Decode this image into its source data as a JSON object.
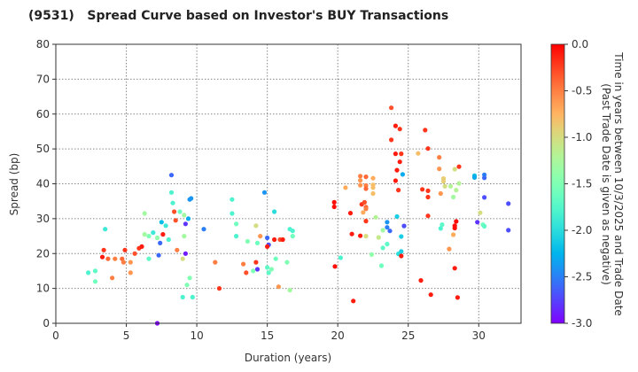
{
  "chart_data": {
    "type": "scatter",
    "title": "(9531)   Spread Curve based on Investor's BUY Transactions",
    "xlabel": "Duration (years)",
    "ylabel": "Spread (bp)",
    "xlim": [
      0,
      33
    ],
    "ylim": [
      0,
      80
    ],
    "xticks": [
      0,
      5,
      10,
      15,
      20,
      25,
      30
    ],
    "yticks": [
      0,
      10,
      20,
      30,
      40,
      50,
      60,
      70,
      80
    ],
    "grid": true,
    "colorbar": {
      "label_line1": "Time in years between 10/3/2025 and Trade Date",
      "label_line2": "(Past Trade Date is given as negative)",
      "range": [
        -3.0,
        0.0
      ],
      "ticks": [
        "0.0",
        "-0.5",
        "-1.0",
        "-1.5",
        "-2.0",
        "-2.5",
        "-3.0"
      ],
      "colormap": "rainbow"
    },
    "point_fields": [
      "duration",
      "spread",
      "time"
    ],
    "points": [
      [
        2.3,
        14.5,
        -1.8
      ],
      [
        2.8,
        15,
        -1.7
      ],
      [
        2.8,
        12,
        -1.6
      ],
      [
        3.3,
        19,
        -0.1
      ],
      [
        3.4,
        21,
        -0.2
      ],
      [
        3.5,
        27,
        -1.9
      ],
      [
        3.7,
        18.5,
        -0.4
      ],
      [
        4.0,
        13,
        -0.5
      ],
      [
        4.2,
        18.5,
        -0.5
      ],
      [
        4.7,
        18.5,
        -0.4
      ],
      [
        4.8,
        17.5,
        -0.5
      ],
      [
        4.9,
        21,
        -0.2
      ],
      [
        5.3,
        17.5,
        -0.6
      ],
      [
        5.3,
        14.5,
        -0.6
      ],
      [
        5.6,
        20,
        -0.3
      ],
      [
        5.9,
        21.5,
        -0.2
      ],
      [
        6.1,
        22,
        -0.1
      ],
      [
        6.3,
        31.5,
        -1.3
      ],
      [
        6.3,
        25.5,
        -1.3
      ],
      [
        6.6,
        18.5,
        -1.7
      ],
      [
        6.6,
        25,
        -1.5
      ],
      [
        6.9,
        26,
        -1.9
      ],
      [
        7.2,
        24.5,
        -1.4
      ],
      [
        7.3,
        19.5,
        -2.6
      ],
      [
        7.4,
        23,
        -2.6
      ],
      [
        7.5,
        29,
        -2.2
      ],
      [
        7.6,
        25.5,
        -0.1
      ],
      [
        7.8,
        28,
        -1.9
      ],
      [
        8.0,
        24,
        -1.8
      ],
      [
        8.2,
        37.5,
        -1.8
      ],
      [
        8.2,
        42.5,
        -2.6
      ],
      [
        8.3,
        34.5,
        -1.8
      ],
      [
        8.4,
        32,
        -0.3
      ],
      [
        8.5,
        29.5,
        -0.3
      ],
      [
        8.6,
        21,
        -0.5
      ],
      [
        8.8,
        32,
        -1.6
      ],
      [
        9.0,
        18.5,
        -1.0
      ],
      [
        9.1,
        31,
        -1.3
      ],
      [
        9.1,
        25,
        -1.3
      ],
      [
        9.2,
        28.5,
        -2.8
      ],
      [
        9.2,
        20,
        -2.9
      ],
      [
        9.4,
        30,
        -2.3
      ],
      [
        9.0,
        7.5,
        -1.8
      ],
      [
        9.5,
        35.5,
        -2.4
      ],
      [
        9.6,
        35.8,
        -2.4
      ],
      [
        9.7,
        7.5,
        -1.8
      ],
      [
        9.5,
        13,
        -1.5
      ],
      [
        9.3,
        11,
        -1.5
      ],
      [
        7.2,
        0,
        -3.0
      ],
      [
        10.5,
        27,
        -2.5
      ],
      [
        11.3,
        17.5,
        -0.5
      ],
      [
        11.6,
        10,
        -0.2
      ],
      [
        12.5,
        35.5,
        -1.8
      ],
      [
        12.5,
        31.5,
        -1.8
      ],
      [
        12.8,
        25,
        -1.8
      ],
      [
        12.8,
        28.5,
        -1.6
      ],
      [
        13.3,
        17,
        -0.5
      ],
      [
        13.5,
        14.5,
        -0.3
      ],
      [
        13.6,
        23.5,
        -1.5
      ],
      [
        14.0,
        15,
        -1.5
      ],
      [
        14.2,
        17.5,
        -0.2
      ],
      [
        14.2,
        28,
        -1.0
      ],
      [
        14.3,
        23,
        -1.6
      ],
      [
        14.3,
        15.5,
        -2.8
      ],
      [
        14.5,
        25,
        -0.6
      ],
      [
        14.8,
        37.5,
        -2.4
      ],
      [
        15.0,
        24.5,
        -2.6
      ],
      [
        15.1,
        22.5,
        -2.7
      ],
      [
        15.0,
        22,
        -0.1
      ],
      [
        15.0,
        16,
        -1.7
      ],
      [
        15.1,
        14.5,
        -1.7
      ],
      [
        15.3,
        15.5,
        -1.5
      ],
      [
        15.5,
        32,
        -2.0
      ],
      [
        15.5,
        24,
        -0.1
      ],
      [
        15.6,
        18.5,
        -1.6
      ],
      [
        15.8,
        10.5,
        -0.6
      ],
      [
        15.9,
        24,
        -0.3
      ],
      [
        16.1,
        24,
        -0.1
      ],
      [
        16.4,
        17.5,
        -1.5
      ],
      [
        16.6,
        9.5,
        -1.3
      ],
      [
        16.6,
        27,
        -1.8
      ],
      [
        16.8,
        26.5,
        -1.8
      ],
      [
        16.8,
        25,
        -1.6
      ],
      [
        19.75,
        34.7,
        -0.05
      ],
      [
        19.75,
        33.4,
        -0.05
      ],
      [
        19.8,
        16.3,
        -0.05
      ],
      [
        20.2,
        18.8,
        -1.8
      ],
      [
        20.55,
        38.9,
        -0.7
      ],
      [
        20.9,
        31.6,
        -0.1
      ],
      [
        21.0,
        25.6,
        -0.1
      ],
      [
        21.1,
        6.4,
        -0.1
      ],
      [
        21.6,
        25.1,
        -0.1
      ],
      [
        21.7,
        34.1,
        -0.2
      ],
      [
        21.9,
        34.7,
        -0.3
      ],
      [
        21.6,
        42.2,
        -0.5
      ],
      [
        21.6,
        41,
        -0.6
      ],
      [
        21.6,
        39.6,
        -0.6
      ],
      [
        22.0,
        42,
        -0.4
      ],
      [
        22.0,
        39.5,
        -0.5
      ],
      [
        22.0,
        38.6,
        -0.4
      ],
      [
        22.0,
        33.3,
        -0.4
      ],
      [
        22.0,
        32.8,
        -0.5
      ],
      [
        21.8,
        31.8,
        -0.7
      ],
      [
        22.0,
        29.3,
        -0.2
      ],
      [
        22.0,
        25,
        -1.0
      ],
      [
        22.5,
        41.6,
        -0.7
      ],
      [
        22.5,
        39.7,
        -0.8
      ],
      [
        22.5,
        38.9,
        -0.8
      ],
      [
        22.5,
        37.2,
        -0.8
      ],
      [
        22.7,
        30.4,
        -1.2
      ],
      [
        22.9,
        24.6,
        -1.1
      ],
      [
        22.4,
        19.7,
        -1.4
      ],
      [
        23.1,
        16.5,
        -1.6
      ],
      [
        23.2,
        21.6,
        -1.7
      ],
      [
        23.2,
        26.7,
        -1.3
      ],
      [
        23.5,
        29,
        -2.4
      ],
      [
        23.5,
        27.5,
        -2.5
      ],
      [
        23.7,
        26.5,
        -2.6
      ],
      [
        23.5,
        22.7,
        -1.7
      ],
      [
        23.8,
        61.8,
        -0.3
      ],
      [
        24.1,
        56.6,
        -0.1
      ],
      [
        24.4,
        55.7,
        -0.2
      ],
      [
        23.8,
        52.6,
        -0.2
      ],
      [
        24.1,
        48.6,
        -0.1
      ],
      [
        24.5,
        48.6,
        -0.2
      ],
      [
        24.4,
        46.3,
        -0.1
      ],
      [
        24.2,
        43.9,
        -0.1
      ],
      [
        24.6,
        42.7,
        -2.3
      ],
      [
        24.1,
        40.9,
        -0.1
      ],
      [
        24.3,
        38.2,
        -0.2
      ],
      [
        24.2,
        30.6,
        -2.1
      ],
      [
        24.7,
        27.9,
        -2.7
      ],
      [
        24.5,
        24.9,
        -2.1
      ],
      [
        24.5,
        20.6,
        -2.1
      ],
      [
        24.3,
        19.9,
        -2.0
      ],
      [
        24.5,
        19.3,
        -0.1
      ],
      [
        25.7,
        48.7,
        -0.8
      ],
      [
        26.2,
        55.4,
        -0.2
      ],
      [
        26.4,
        50.1,
        -0.2
      ],
      [
        26.0,
        38.4,
        -0.2
      ],
      [
        26.4,
        38,
        -0.2
      ],
      [
        26.4,
        36.2,
        -0.2
      ],
      [
        26.4,
        30.8,
        -0.2
      ],
      [
        25.9,
        12.3,
        -0.1
      ],
      [
        26.6,
        8.2,
        -0.1
      ],
      [
        27.2,
        47.6,
        -0.5
      ],
      [
        27.2,
        44.3,
        -0.6
      ],
      [
        27.3,
        37.2,
        -0.6
      ],
      [
        27.4,
        28.3,
        -1.7
      ],
      [
        27.3,
        27.2,
        -1.8
      ],
      [
        27.5,
        41.5,
        -0.9
      ],
      [
        27.5,
        40.7,
        -0.9
      ],
      [
        27.6,
        39.3,
        -1.0
      ],
      [
        28.0,
        39.3,
        -1.2
      ],
      [
        28.3,
        44.2,
        -1.0
      ],
      [
        28.6,
        44.9,
        -0.2
      ],
      [
        28.6,
        40.1,
        -1.2
      ],
      [
        28.4,
        38.2,
        -1.2
      ],
      [
        28.2,
        36.2,
        -1.3
      ],
      [
        28.4,
        29.2,
        -0.05
      ],
      [
        28.3,
        28.0,
        -0.05
      ],
      [
        28.3,
        27.3,
        -0.05
      ],
      [
        28.2,
        25.4,
        -0.7
      ],
      [
        27.9,
        21.3,
        -0.6
      ],
      [
        28.3,
        15.8,
        -0.1
      ],
      [
        28.5,
        7.4,
        -0.1
      ],
      [
        29.7,
        42.3,
        -2.2
      ],
      [
        29.7,
        41.8,
        -2.3
      ],
      [
        30.1,
        31.7,
        -1.0
      ],
      [
        29.9,
        29,
        -2.8
      ],
      [
        30.3,
        28.3,
        -1.6
      ],
      [
        30.4,
        27.8,
        -1.7
      ],
      [
        30.4,
        42.6,
        -2.5
      ],
      [
        30.4,
        41.7,
        -2.6
      ],
      [
        30.4,
        36.1,
        -2.7
      ],
      [
        32.1,
        34.3,
        -2.7
      ],
      [
        32.1,
        26.7,
        -2.7
      ]
    ]
  }
}
